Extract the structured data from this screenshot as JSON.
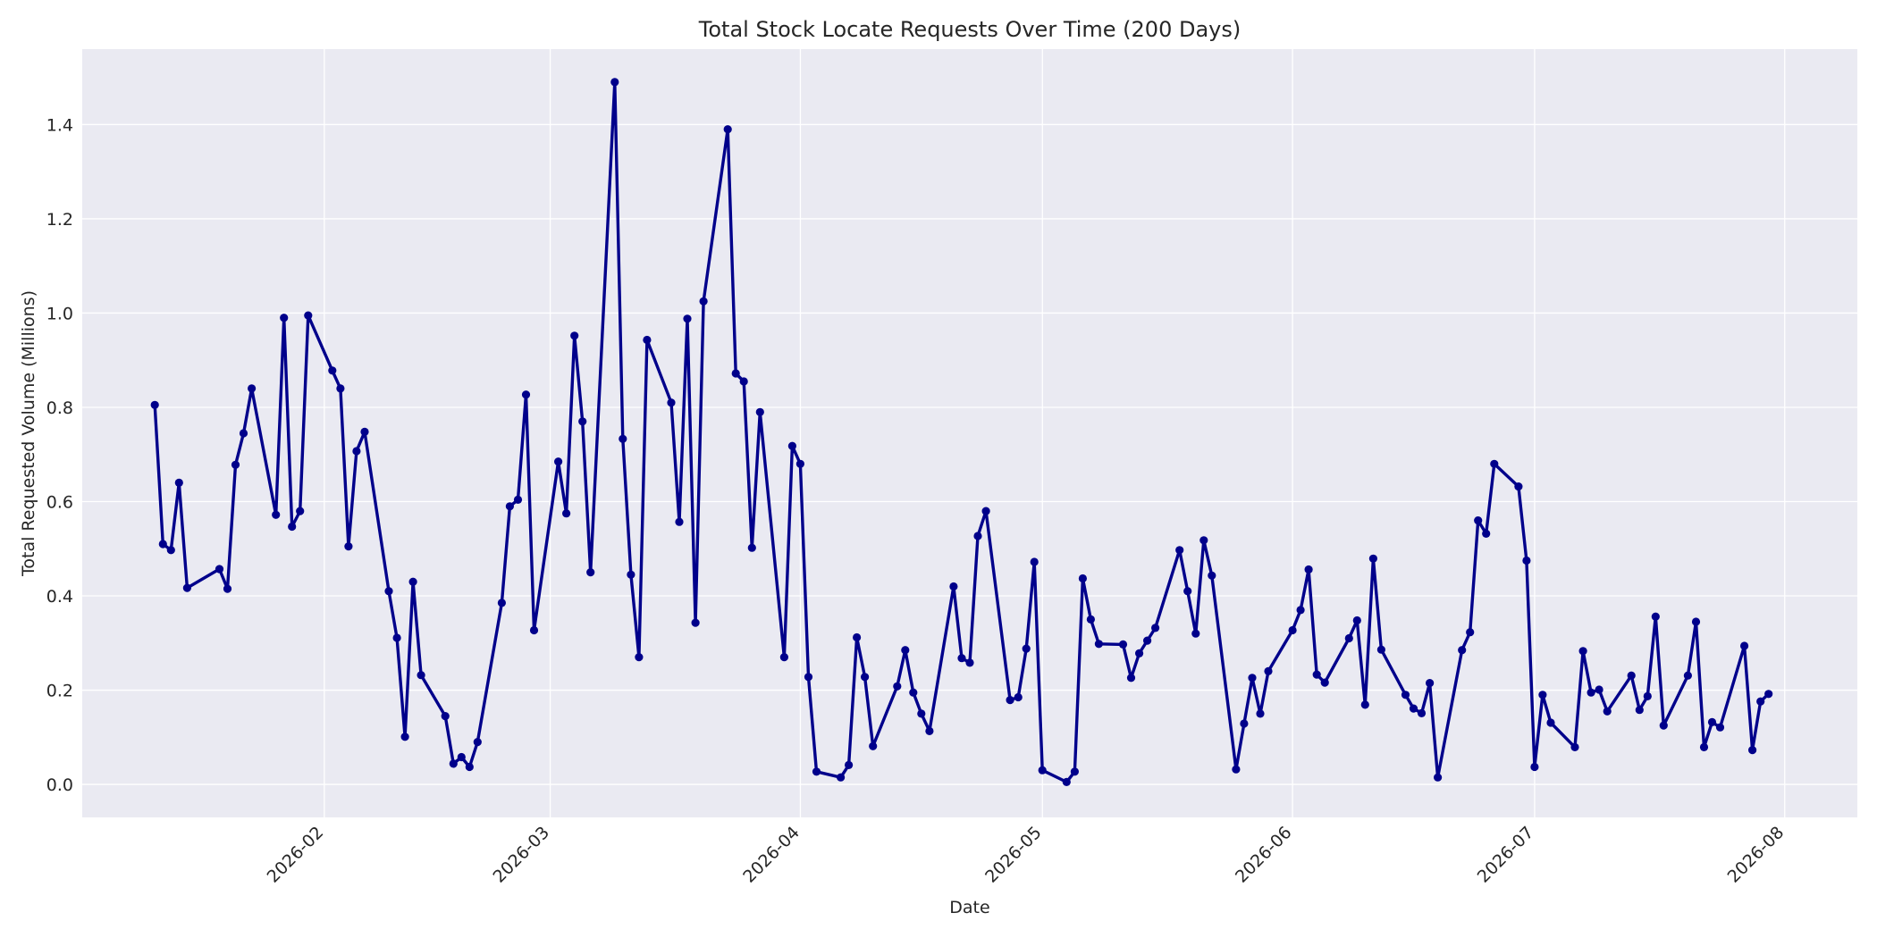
{
  "chart_data": {
    "type": "line",
    "title": "Total Stock Locate Requests Over Time (200 Days)",
    "xlabel": "Date",
    "ylabel": "Total Requested Volume (Millions)",
    "x_tick_labels": [
      "2026-02",
      "2026-03",
      "2026-04",
      "2026-05",
      "2026-06",
      "2026-07",
      "2026-08"
    ],
    "y_tick_labels": [
      "0.0",
      "0.2",
      "0.4",
      "0.6",
      "0.8",
      "1.0",
      "1.2",
      "1.4"
    ],
    "y_ticks": [
      0,
      0.2,
      0.4,
      0.6,
      0.8,
      1.0,
      1.2,
      1.4
    ],
    "xlim": [
      "2026-01-02",
      "2026-08-10"
    ],
    "ylim": [
      -0.07,
      1.56
    ],
    "grid": true,
    "colors": {
      "background": "#eaeaf2",
      "line": "#00008b",
      "grid": "#ffffff",
      "text": "#262626"
    },
    "series": [
      {
        "x": [
          "2026-01-11",
          "2026-01-12",
          "2026-01-13",
          "2026-01-14",
          "2026-01-15",
          "2026-01-19",
          "2026-01-20",
          "2026-01-21",
          "2026-01-22",
          "2026-01-23",
          "2026-01-26",
          "2026-01-27",
          "2026-01-28",
          "2026-01-29",
          "2026-01-30",
          "2026-02-02",
          "2026-02-03",
          "2026-02-04",
          "2026-02-05",
          "2026-02-06",
          "2026-02-09",
          "2026-02-10",
          "2026-02-11",
          "2026-02-12",
          "2026-02-13",
          "2026-02-16",
          "2026-02-17",
          "2026-02-18",
          "2026-02-19",
          "2026-02-20",
          "2026-02-23",
          "2026-02-24",
          "2026-02-25",
          "2026-02-26",
          "2026-02-27",
          "2026-03-02",
          "2026-03-03",
          "2026-03-04",
          "2026-03-05",
          "2026-03-06",
          "2026-03-09",
          "2026-03-10",
          "2026-03-11",
          "2026-03-12",
          "2026-03-13",
          "2026-03-16",
          "2026-03-17",
          "2026-03-18",
          "2026-03-19",
          "2026-03-20",
          "2026-03-23",
          "2026-03-24",
          "2026-03-25",
          "2026-03-26",
          "2026-03-27",
          "2026-03-30",
          "2026-03-31",
          "2026-04-01",
          "2026-04-02",
          "2026-04-03",
          "2026-04-06",
          "2026-04-07",
          "2026-04-08",
          "2026-04-09",
          "2026-04-10",
          "2026-04-13",
          "2026-04-14",
          "2026-04-15",
          "2026-04-16",
          "2026-04-17",
          "2026-04-20",
          "2026-04-21",
          "2026-04-22",
          "2026-04-23",
          "2026-04-24",
          "2026-04-27",
          "2026-04-28",
          "2026-04-29",
          "2026-04-30",
          "2026-05-01",
          "2026-05-04",
          "2026-05-05",
          "2026-05-06",
          "2026-05-07",
          "2026-05-08",
          "2026-05-11",
          "2026-05-12",
          "2026-05-13",
          "2026-05-14",
          "2026-05-15",
          "2026-05-18",
          "2026-05-19",
          "2026-05-20",
          "2026-05-21",
          "2026-05-22",
          "2026-05-25",
          "2026-05-26",
          "2026-05-27",
          "2026-05-28",
          "2026-05-29",
          "2026-06-01",
          "2026-06-02",
          "2026-06-03",
          "2026-06-04",
          "2026-06-05",
          "2026-06-08",
          "2026-06-09",
          "2026-06-10",
          "2026-06-11",
          "2026-06-12",
          "2026-06-15",
          "2026-06-16",
          "2026-06-17",
          "2026-06-18",
          "2026-06-19",
          "2026-06-22",
          "2026-06-23",
          "2026-06-24",
          "2026-06-25",
          "2026-06-26",
          "2026-06-29",
          "2026-06-30",
          "2026-07-01",
          "2026-07-02",
          "2026-07-03",
          "2026-07-06",
          "2026-07-07",
          "2026-07-08",
          "2026-07-09",
          "2026-07-10",
          "2026-07-13",
          "2026-07-14",
          "2026-07-15",
          "2026-07-16",
          "2026-07-17",
          "2026-07-20",
          "2026-07-21",
          "2026-07-22",
          "2026-07-23",
          "2026-07-24",
          "2026-07-27",
          "2026-07-28",
          "2026-07-29",
          "2026-07-30"
        ],
        "values": [
          0.805,
          0.51,
          0.497,
          0.64,
          0.417,
          0.457,
          0.415,
          0.678,
          0.745,
          0.84,
          0.572,
          0.99,
          0.547,
          0.58,
          0.995,
          0.878,
          0.84,
          0.505,
          0.707,
          0.748,
          0.41,
          0.311,
          0.101,
          0.43,
          0.232,
          0.145,
          0.044,
          0.058,
          0.037,
          0.09,
          0.385,
          0.59,
          0.604,
          0.827,
          0.327,
          0.685,
          0.575,
          0.952,
          0.77,
          0.45,
          1.49,
          0.733,
          0.445,
          0.27,
          0.943,
          0.81,
          0.557,
          0.988,
          0.343,
          1.025,
          1.39,
          0.872,
          0.855,
          0.502,
          0.79,
          0.27,
          0.718,
          0.68,
          0.228,
          0.027,
          0.015,
          0.041,
          0.312,
          0.228,
          0.081,
          0.208,
          0.285,
          0.195,
          0.15,
          0.113,
          0.42,
          0.268,
          0.258,
          0.527,
          0.58,
          0.179,
          0.185,
          0.288,
          0.472,
          0.03,
          0.005,
          0.027,
          0.437,
          0.35,
          0.298,
          0.297,
          0.226,
          0.278,
          0.305,
          0.332,
          0.497,
          0.41,
          0.32,
          0.518,
          0.443,
          0.032,
          0.129,
          0.226,
          0.15,
          0.24,
          0.327,
          0.37,
          0.456,
          0.233,
          0.216,
          0.31,
          0.348,
          0.169,
          0.479,
          0.286,
          0.19,
          0.161,
          0.151,
          0.215,
          0.015,
          0.285,
          0.323,
          0.56,
          0.532,
          0.68,
          0.632,
          0.475,
          0.037,
          0.19,
          0.131,
          0.079,
          0.283,
          0.195,
          0.201,
          0.155,
          0.231,
          0.158,
          0.187,
          0.356,
          0.125,
          0.231,
          0.345,
          0.079,
          0.132,
          0.121,
          0.294,
          0.073,
          0.176,
          0.192
        ]
      }
    ]
  }
}
